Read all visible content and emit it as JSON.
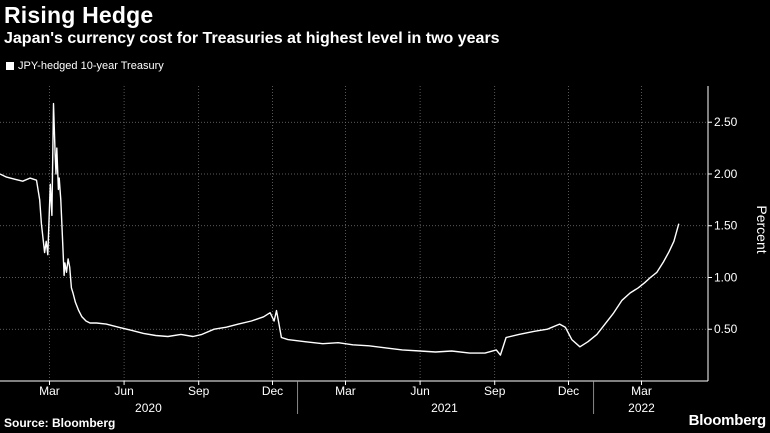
{
  "header": {
    "title": "Rising Hedge",
    "subtitle": "Japan's currency cost for Treasuries at highest level in two years"
  },
  "footer": {
    "source": "Source: Bloomberg",
    "brand": "Bloomberg"
  },
  "colors": {
    "background": "#000000",
    "line": "#ffffff",
    "grid": "#7a7a7a"
  },
  "chart_data": {
    "type": "line",
    "title": "Rising Hedge",
    "subtitle": "Japan's currency cost for Treasuries at highest level in two years",
    "ylabel": "Percent",
    "xlabel": "",
    "grid": true,
    "legend_position": "top-left",
    "ylim": [
      0,
      2.85
    ],
    "y_ticks": [
      0.5,
      1.0,
      1.5,
      2.0,
      2.5
    ],
    "y_tick_labels": [
      "0.50",
      "1.00",
      "1.50",
      "2.00",
      "2.50"
    ],
    "xlim": [
      "2019-12-31",
      "2022-05-22"
    ],
    "x_ticks": [
      "2020-03-01",
      "2020-06-01",
      "2020-09-01",
      "2020-12-01",
      "2021-03-01",
      "2021-06-01",
      "2021-09-01",
      "2021-12-01",
      "2022-03-01"
    ],
    "x_tick_labels": [
      "Mar",
      "Jun",
      "Sep",
      "Dec",
      "Mar",
      "Jun",
      "Sep",
      "Dec",
      "Mar"
    ],
    "year_labels": [
      {
        "label": "2020",
        "date": "2020-07-01"
      },
      {
        "label": "2021",
        "date": "2021-07-01"
      },
      {
        "label": "2022",
        "date": "2022-03-01"
      }
    ],
    "year_dividers": [
      "2021-01-01",
      "2022-01-01"
    ],
    "series": [
      {
        "name": "JPY-hedged 10-year Treasury",
        "x": [
          "2019-12-31",
          "2020-01-08",
          "2020-01-18",
          "2020-01-28",
          "2020-02-06",
          "2020-02-14",
          "2020-02-18",
          "2020-02-20",
          "2020-02-24",
          "2020-02-26",
          "2020-02-28",
          "2020-03-02",
          "2020-03-04",
          "2020-03-06",
          "2020-03-08",
          "2020-03-09",
          "2020-03-10",
          "2020-03-12",
          "2020-03-13",
          "2020-03-15",
          "2020-03-17",
          "2020-03-19",
          "2020-03-20",
          "2020-03-22",
          "2020-03-24",
          "2020-03-26",
          "2020-03-28",
          "2020-03-30",
          "2020-04-02",
          "2020-04-06",
          "2020-04-10",
          "2020-04-15",
          "2020-04-20",
          "2020-04-28",
          "2020-05-10",
          "2020-05-25",
          "2020-06-10",
          "2020-06-25",
          "2020-07-10",
          "2020-07-25",
          "2020-08-10",
          "2020-08-25",
          "2020-09-05",
          "2020-09-20",
          "2020-10-05",
          "2020-10-20",
          "2020-11-05",
          "2020-11-20",
          "2020-11-28",
          "2020-12-03",
          "2020-12-06",
          "2020-12-09",
          "2020-12-12",
          "2020-12-20",
          "2021-01-10",
          "2021-02-01",
          "2021-02-20",
          "2021-03-10",
          "2021-03-30",
          "2021-04-20",
          "2021-05-10",
          "2021-06-01",
          "2021-06-20",
          "2021-07-10",
          "2021-08-01",
          "2021-08-20",
          "2021-09-03",
          "2021-09-08",
          "2021-09-15",
          "2021-10-01",
          "2021-10-20",
          "2021-11-05",
          "2021-11-20",
          "2021-11-27",
          "2021-12-05",
          "2021-12-15",
          "2021-12-25",
          "2022-01-05",
          "2022-01-15",
          "2022-01-25",
          "2022-02-05",
          "2022-02-15",
          "2022-02-25",
          "2022-03-05",
          "2022-03-12",
          "2022-03-20",
          "2022-03-28",
          "2022-04-04",
          "2022-04-10",
          "2022-04-16"
        ],
        "y": [
          2.0,
          1.97,
          1.95,
          1.93,
          1.96,
          1.94,
          1.75,
          1.52,
          1.24,
          1.35,
          1.22,
          1.9,
          1.6,
          2.68,
          2.2,
          2.0,
          2.25,
          1.85,
          1.96,
          1.75,
          1.4,
          1.02,
          1.14,
          1.05,
          1.18,
          1.1,
          0.9,
          0.85,
          0.76,
          0.68,
          0.62,
          0.58,
          0.56,
          0.56,
          0.55,
          0.52,
          0.49,
          0.46,
          0.44,
          0.43,
          0.45,
          0.43,
          0.45,
          0.5,
          0.52,
          0.55,
          0.58,
          0.62,
          0.66,
          0.58,
          0.68,
          0.55,
          0.42,
          0.4,
          0.38,
          0.36,
          0.37,
          0.35,
          0.34,
          0.32,
          0.3,
          0.29,
          0.28,
          0.29,
          0.27,
          0.27,
          0.3,
          0.25,
          0.42,
          0.45,
          0.48,
          0.5,
          0.55,
          0.52,
          0.4,
          0.33,
          0.38,
          0.45,
          0.55,
          0.65,
          0.78,
          0.85,
          0.9,
          0.95,
          1.0,
          1.05,
          1.15,
          1.25,
          1.35,
          1.52
        ]
      }
    ]
  }
}
